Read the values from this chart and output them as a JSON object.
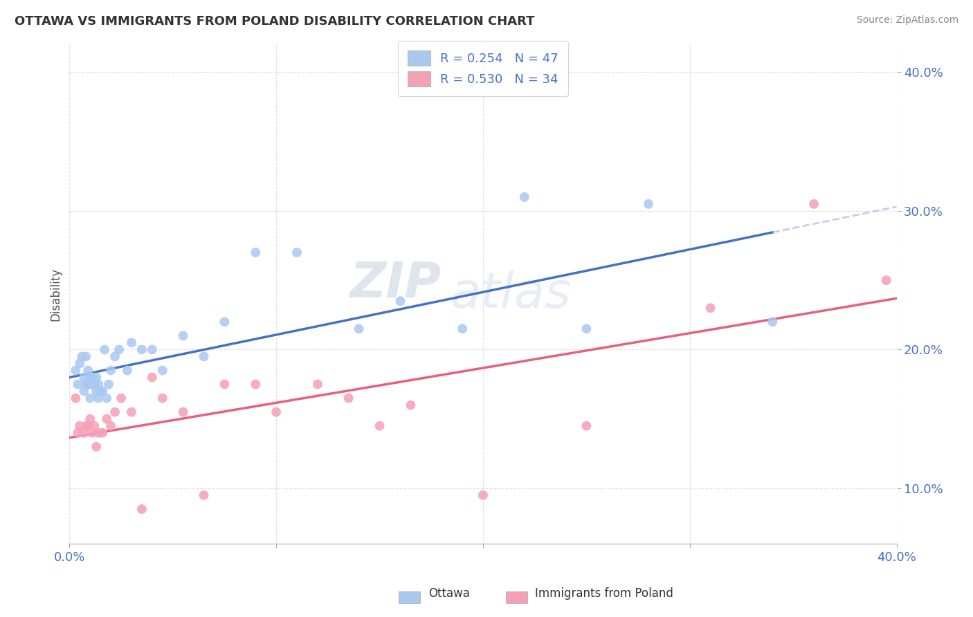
{
  "title": "OTTAWA VS IMMIGRANTS FROM POLAND DISABILITY CORRELATION CHART",
  "source": "Source: ZipAtlas.com",
  "ylabel": "Disability",
  "legend_ottawa": "Ottawa",
  "legend_poland": "Immigrants from Poland",
  "r_ottawa": "0.254",
  "n_ottawa": "47",
  "r_poland": "0.530",
  "n_poland": "34",
  "color_ottawa": "#a8c8f0",
  "color_poland": "#f4a0b5",
  "color_ottawa_line": "#4472c4",
  "color_poland_line": "#e8607a",
  "color_ottawa_dash": "#aabbdd",
  "color_text_blue": "#4472c4",
  "color_grid": "#d8d8d8",
  "color_bg": "#ffffff",
  "xlim": [
    0.0,
    0.4
  ],
  "ylim": [
    0.06,
    0.42
  ],
  "ottawa_x": [
    0.003,
    0.004,
    0.005,
    0.006,
    0.007,
    0.007,
    0.008,
    0.008,
    0.009,
    0.009,
    0.009,
    0.01,
    0.01,
    0.01,
    0.011,
    0.011,
    0.012,
    0.012,
    0.013,
    0.013,
    0.014,
    0.014,
    0.015,
    0.016,
    0.017,
    0.018,
    0.019,
    0.02,
    0.022,
    0.024,
    0.028,
    0.03,
    0.035,
    0.04,
    0.045,
    0.055,
    0.065,
    0.075,
    0.09,
    0.11,
    0.14,
    0.16,
    0.19,
    0.22,
    0.25,
    0.28,
    0.34
  ],
  "ottawa_y": [
    0.185,
    0.175,
    0.19,
    0.195,
    0.18,
    0.17,
    0.175,
    0.195,
    0.175,
    0.185,
    0.175,
    0.175,
    0.18,
    0.165,
    0.175,
    0.18,
    0.175,
    0.175,
    0.18,
    0.17,
    0.175,
    0.165,
    0.17,
    0.17,
    0.2,
    0.165,
    0.175,
    0.185,
    0.195,
    0.2,
    0.185,
    0.205,
    0.2,
    0.2,
    0.185,
    0.21,
    0.195,
    0.22,
    0.27,
    0.27,
    0.215,
    0.235,
    0.215,
    0.31,
    0.215,
    0.305,
    0.22
  ],
  "poland_x": [
    0.003,
    0.004,
    0.005,
    0.007,
    0.008,
    0.009,
    0.01,
    0.011,
    0.012,
    0.013,
    0.014,
    0.016,
    0.018,
    0.02,
    0.022,
    0.025,
    0.03,
    0.035,
    0.04,
    0.045,
    0.055,
    0.065,
    0.075,
    0.09,
    0.1,
    0.12,
    0.135,
    0.15,
    0.165,
    0.2,
    0.25,
    0.31,
    0.36,
    0.395
  ],
  "poland_y": [
    0.165,
    0.14,
    0.145,
    0.14,
    0.145,
    0.145,
    0.15,
    0.14,
    0.145,
    0.13,
    0.14,
    0.14,
    0.15,
    0.145,
    0.155,
    0.165,
    0.155,
    0.085,
    0.18,
    0.165,
    0.155,
    0.095,
    0.175,
    0.175,
    0.155,
    0.175,
    0.165,
    0.145,
    0.16,
    0.095,
    0.145,
    0.23,
    0.305,
    0.25
  ],
  "watermark_zip": "ZIP",
  "watermark_atlas": "atlas",
  "tick_color": "#4472c4",
  "title_color": "#333333",
  "source_color": "#888888"
}
